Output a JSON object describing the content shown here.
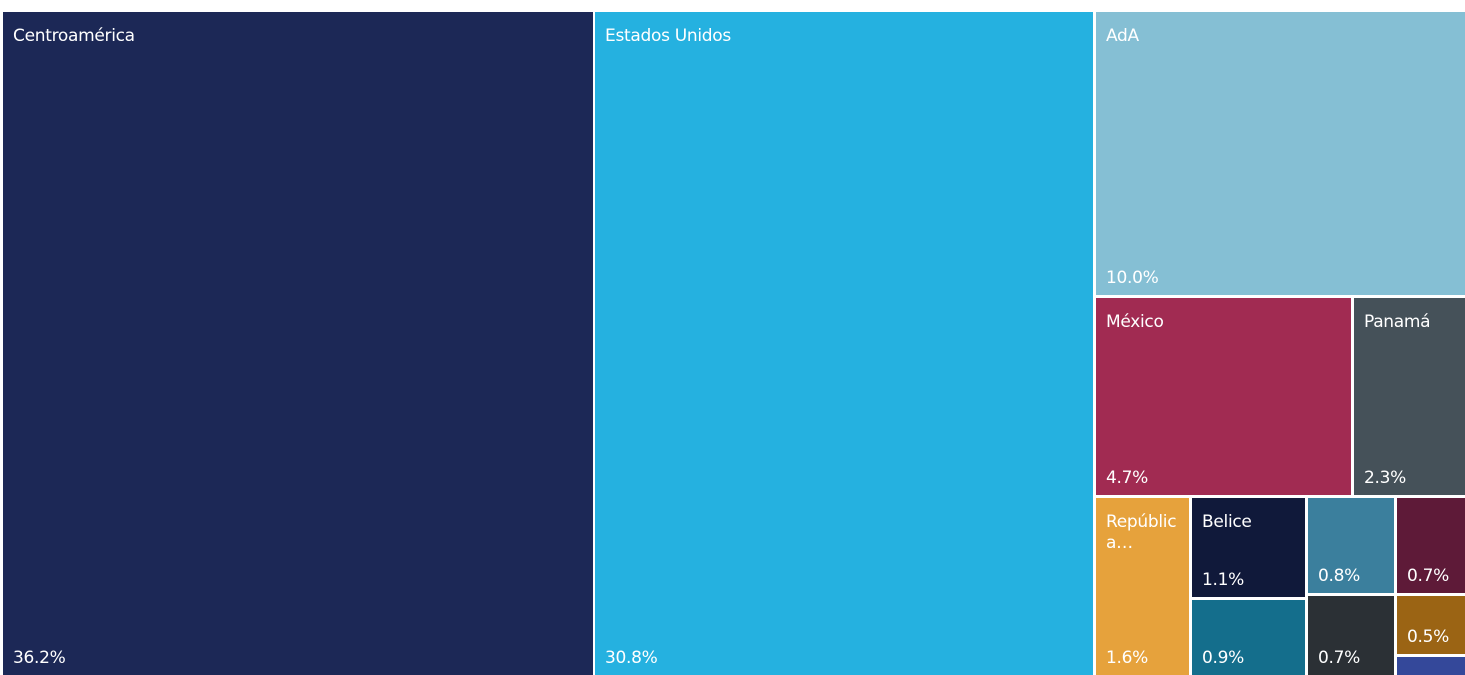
{
  "chart_data": {
    "type": "treemap",
    "items": [
      {
        "label": "Centroamérica",
        "value": 36.2,
        "display": "36.2%",
        "color": "#1c2856"
      },
      {
        "label": "Estados Unidos",
        "value": 30.8,
        "display": "30.8%",
        "color": "#25b1e0"
      },
      {
        "label": "AdA",
        "value": 10.0,
        "display": "10.0%",
        "color": "#85bfd4"
      },
      {
        "label": "México",
        "value": 4.7,
        "display": "4.7%",
        "color": "#a12b52"
      },
      {
        "label": "Panamá",
        "value": 2.3,
        "display": "2.3%",
        "color": "#455159"
      },
      {
        "label": "República Dominicana",
        "value": 1.6,
        "display": "1.6%",
        "color": "#e6a23c"
      },
      {
        "label": "Belice",
        "value": 1.1,
        "display": "1.1%",
        "color": "#10193a"
      },
      {
        "label": "",
        "value": 0.9,
        "display": "0.9%",
        "color": "#146e8c"
      },
      {
        "label": "",
        "value": 0.8,
        "display": "0.8%",
        "color": "#3b7f9d"
      },
      {
        "label": "",
        "value": 0.7,
        "display": "0.7%",
        "color": "#5e1a38"
      },
      {
        "label": "",
        "value": 0.7,
        "display": "0.7%",
        "color": "#2b3035"
      },
      {
        "label": "",
        "value": 0.5,
        "display": "0.5%",
        "color": "#9b6414"
      },
      {
        "label": "",
        "value": null,
        "display": "",
        "color": "#34489a"
      }
    ]
  }
}
